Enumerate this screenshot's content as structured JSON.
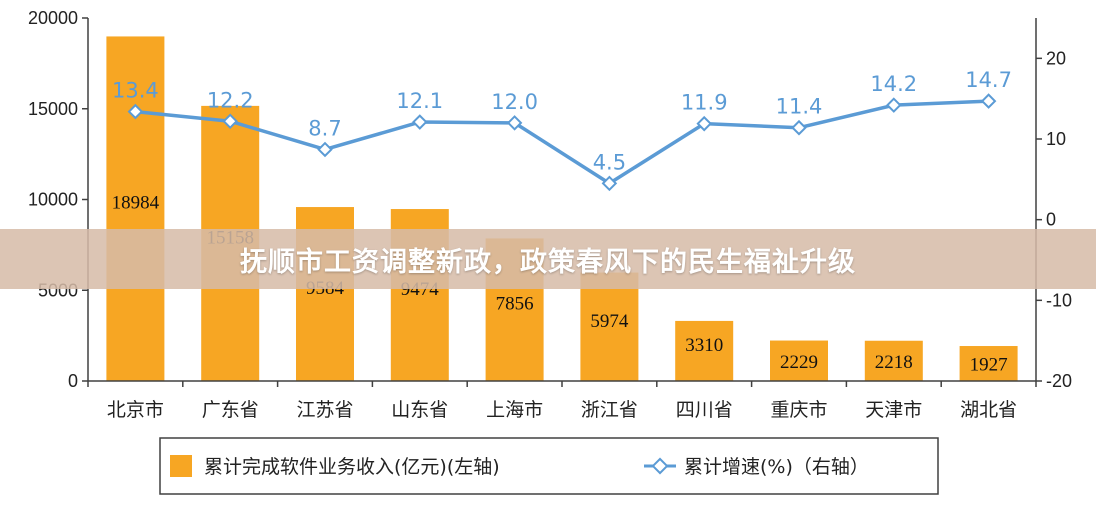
{
  "overlay": {
    "title": "抚顺市工资调整新政，政策春风下的民生福祉升级"
  },
  "colors": {
    "bar": "#f7a623",
    "line": "#5b9bd5",
    "axis": "#404040",
    "banner": "#d6bca8"
  },
  "chart_data": {
    "type": "bar+line",
    "categories": [
      "北京市",
      "广东省",
      "江苏省",
      "山东省",
      "上海市",
      "浙江省",
      "四川省",
      "重庆市",
      "天津市",
      "湖北省"
    ],
    "series": [
      {
        "name": "累计完成软件业务收入(亿元)(左轴)",
        "axis": "left",
        "kind": "bar",
        "values": [
          18984,
          15158,
          9584,
          9474,
          7856,
          5974,
          3310,
          2229,
          2218,
          1927
        ],
        "labels": [
          "18984",
          "15158",
          "9584",
          "9474",
          "7856",
          "5974",
          "3310",
          "2229",
          "2218",
          "1927"
        ]
      },
      {
        "name": "累计增速(%)（右轴）",
        "axis": "right",
        "kind": "line",
        "values": [
          13.4,
          12.2,
          8.7,
          12.1,
          12.0,
          4.5,
          11.9,
          11.4,
          14.2,
          14.7
        ],
        "labels": [
          "13.4",
          "12.2",
          "8.7",
          "12.1",
          "12.0",
          "4.5",
          "11.9",
          "11.4",
          "14.2",
          "14.7"
        ]
      }
    ],
    "left_axis": {
      "range": [
        0,
        20000
      ],
      "ticks": [
        0,
        5000,
        10000,
        15000,
        20000
      ],
      "tick_labels": [
        "0",
        "5000",
        "10000",
        "15000",
        "20000"
      ]
    },
    "right_axis": {
      "range": [
        -20,
        25
      ],
      "ticks": [
        -20,
        -10,
        0,
        10,
        20
      ],
      "tick_labels": [
        "-20",
        "-10",
        "0",
        "10",
        "20"
      ]
    },
    "legend": {
      "position": "bottom",
      "items": [
        {
          "label": "累计完成软件业务收入(亿元)(左轴)"
        },
        {
          "label": "累计增速(%)（右轴）"
        }
      ]
    },
    "grid": false
  }
}
